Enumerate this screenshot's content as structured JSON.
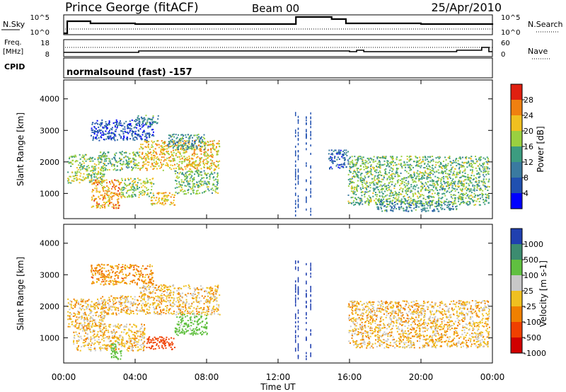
{
  "header": {
    "station": "Prince George (fitACF)",
    "beam": "Beam 00",
    "date": "25/Apr/2010"
  },
  "top_panels": {
    "nsky_label": "N.Sky",
    "nsearch_label": "N.Search",
    "nsky_ticks": [
      "10^5",
      "10^0"
    ],
    "nsearch_ticks": [
      "10^5",
      "10^0"
    ],
    "freq_label_1": "Freq.",
    "freq_label_2": "[MHz]",
    "freq_ticks": [
      "18",
      "8"
    ],
    "nave_label": "Nave",
    "nave_ticks": [
      "60",
      "0"
    ],
    "cpid_label": "CPID",
    "cpid_value": "normalsound (fast) -157"
  },
  "colors": {
    "power_scale": [
      "#0000ff",
      "#2050b0",
      "#3a7aa0",
      "#3c9c80",
      "#9ad040",
      "#f0c020",
      "#f08010",
      "#e02010"
    ],
    "velocity_scale": [
      "#d00000",
      "#f04000",
      "#f08000",
      "#f0c020",
      "#c8c8c8",
      "#60c040",
      "#3c8c70",
      "#2040b0"
    ]
  },
  "chart_data": [
    {
      "type": "heatmap",
      "name": "Power",
      "ylabel": "Slant Range [km]",
      "colorbar_label": "Power [dB]",
      "colorbar_ticks": [
        "28",
        "24",
        "20",
        "16",
        "12",
        "8",
        "4"
      ],
      "ylim": [
        200,
        4600
      ],
      "yticks": [
        "4000",
        "3000",
        "2000",
        "1000"
      ],
      "ytick_values": [
        4000,
        3000,
        2000,
        1000
      ],
      "bands": [
        {
          "t0": 0.2,
          "t1": 2.3,
          "r0": 1350,
          "r1": 2250,
          "power": 18
        },
        {
          "t0": 2.0,
          "t1": 4.2,
          "r0": 1750,
          "r1": 2350,
          "power": 16
        },
        {
          "t0": 4.2,
          "t1": 8.7,
          "r0": 1750,
          "r1": 2700,
          "power": 22
        },
        {
          "t0": 5.8,
          "t1": 7.9,
          "r0": 2400,
          "r1": 2900,
          "power": 12
        },
        {
          "t0": 1.5,
          "t1": 3.2,
          "r0": 550,
          "r1": 1450,
          "power": 24
        },
        {
          "t0": 3.2,
          "t1": 5.0,
          "r0": 900,
          "r1": 1500,
          "power": 18
        },
        {
          "t0": 4.8,
          "t1": 6.2,
          "r0": 650,
          "r1": 1050,
          "power": 22
        },
        {
          "t0": 6.2,
          "t1": 8.6,
          "r0": 1000,
          "r1": 1750,
          "power": 16
        },
        {
          "t0": 1.5,
          "t1": 5.0,
          "r0": 2700,
          "r1": 3350,
          "power": 6
        },
        {
          "t0": 4.0,
          "t1": 5.3,
          "r0": 3200,
          "r1": 3500,
          "power": 12
        },
        {
          "t0": 15.9,
          "t1": 23.8,
          "r0": 650,
          "r1": 2200,
          "power": 16
        },
        {
          "t0": 17.5,
          "t1": 22.0,
          "r0": 450,
          "r1": 800,
          "power": 12
        },
        {
          "t0": 14.8,
          "t1": 15.9,
          "r0": 1800,
          "r1": 2400,
          "power": 8
        }
      ]
    },
    {
      "type": "heatmap",
      "name": "Velocity",
      "ylabel": "Slant Range [km]",
      "xlabel": "Time UT",
      "colorbar_label": "Velocity [m s-1]",
      "colorbar_ticks": [
        "1000",
        "500",
        "100",
        "25",
        "-25",
        "-100",
        "-500",
        "-1000"
      ],
      "ylim": [
        200,
        4600
      ],
      "yticks": [
        "4000",
        "3000",
        "2000",
        "1000"
      ],
      "ytick_values": [
        4000,
        3000,
        2000,
        1000
      ],
      "xlim": [
        0,
        24
      ],
      "xticks": [
        "00:00",
        "04:00",
        "08:00",
        "12:00",
        "16:00",
        "20:00",
        "00:00"
      ],
      "xtick_values": [
        0,
        4,
        8,
        12,
        16,
        20,
        24
      ],
      "bands": [
        {
          "t0": 0.2,
          "t1": 2.3,
          "r0": 1350,
          "r1": 2250,
          "velocity": 0
        },
        {
          "t0": 2.0,
          "t1": 4.2,
          "r0": 1750,
          "r1": 2350,
          "velocity": 0
        },
        {
          "t0": 4.2,
          "t1": 8.7,
          "r0": 1750,
          "r1": 2700,
          "velocity": 0
        },
        {
          "t0": 1.5,
          "t1": 5.0,
          "r0": 2700,
          "r1": 3350,
          "velocity": -50
        },
        {
          "t0": 0.5,
          "t1": 4.5,
          "r0": 600,
          "r1": 1450,
          "velocity": 0
        },
        {
          "t0": 4.6,
          "t1": 6.2,
          "r0": 650,
          "r1": 1050,
          "velocity": -300
        },
        {
          "t0": 6.2,
          "t1": 8.0,
          "r0": 1100,
          "r1": 1800,
          "velocity": 150
        },
        {
          "t0": 15.9,
          "t1": 23.8,
          "r0": 700,
          "r1": 2200,
          "velocity": 0
        },
        {
          "t0": 2.6,
          "t1": 3.2,
          "r0": 300,
          "r1": 900,
          "velocity": 200
        }
      ]
    }
  ]
}
